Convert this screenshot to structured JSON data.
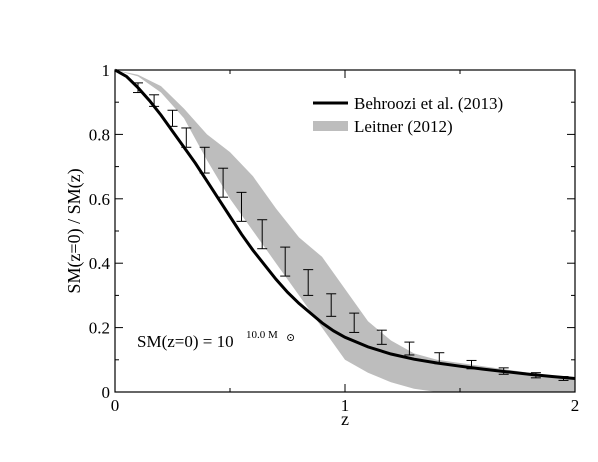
{
  "chart_data": {
    "type": "line",
    "xlabel": "z",
    "ylabel": "SM(z=0) / SM(z)",
    "xlim": [
      0,
      2
    ],
    "ylim": [
      0,
      1
    ],
    "x_ticks": [
      0,
      1,
      2
    ],
    "x_tick_labels": [
      "0",
      "1",
      "2"
    ],
    "y_ticks": [
      0,
      0.2,
      0.4,
      0.6,
      0.8,
      1
    ],
    "y_tick_labels": [
      "0",
      "0.2",
      "0.4",
      "0.6",
      "0.8",
      "1"
    ],
    "grid": false,
    "legend_position": "top-right",
    "annotation": {
      "base": "SM(z=0) = 10",
      "superscript": "10.0 M",
      "symbol": "⊙"
    },
    "series": [
      {
        "name": "Behroozi et al. (2013)",
        "style": "line",
        "color": "#000000",
        "x": [
          0,
          0.05,
          0.1,
          0.15,
          0.2,
          0.25,
          0.3,
          0.35,
          0.4,
          0.45,
          0.5,
          0.55,
          0.6,
          0.65,
          0.7,
          0.75,
          0.8,
          0.85,
          0.9,
          0.95,
          1.0,
          1.1,
          1.2,
          1.3,
          1.4,
          1.5,
          1.6,
          1.7,
          1.8,
          1.9,
          2.0
        ],
        "y": [
          1.0,
          0.98,
          0.945,
          0.905,
          0.86,
          0.81,
          0.76,
          0.71,
          0.655,
          0.6,
          0.545,
          0.49,
          0.44,
          0.395,
          0.35,
          0.31,
          0.275,
          0.245,
          0.215,
          0.19,
          0.17,
          0.14,
          0.118,
          0.102,
          0.09,
          0.08,
          0.071,
          0.063,
          0.055,
          0.048,
          0.042
        ]
      },
      {
        "name": "Leitner (2012)",
        "style": "band",
        "color": "#bdbdbd",
        "x": [
          0,
          0.1,
          0.2,
          0.3,
          0.4,
          0.5,
          0.6,
          0.7,
          0.8,
          0.9,
          1.0,
          1.1,
          1.2,
          1.3,
          1.4,
          1.5,
          1.6,
          1.7,
          1.8,
          1.9,
          2.0
        ],
        "upper": [
          1.0,
          0.985,
          0.95,
          0.88,
          0.8,
          0.745,
          0.67,
          0.57,
          0.48,
          0.42,
          0.32,
          0.22,
          0.16,
          0.12,
          0.1,
          0.09,
          0.08,
          0.07,
          0.06,
          0.05,
          0.04
        ],
        "lower": [
          1.0,
          0.98,
          0.93,
          0.85,
          0.72,
          0.6,
          0.5,
          0.4,
          0.3,
          0.2,
          0.1,
          0.06,
          0.03,
          0.01,
          0.0,
          0.0,
          0.0,
          0.0,
          0.0,
          0.0,
          0.0
        ]
      },
      {
        "name": "",
        "style": "errorbars",
        "color": "#000000",
        "x": [
          0.1,
          0.17,
          0.25,
          0.31,
          0.39,
          0.47,
          0.55,
          0.64,
          0.74,
          0.84,
          0.94,
          1.04,
          1.16,
          1.28,
          1.41,
          1.55,
          1.69,
          1.83,
          1.95
        ],
        "y": [
          0.945,
          0.905,
          0.85,
          0.79,
          0.72,
          0.65,
          0.575,
          0.49,
          0.405,
          0.34,
          0.27,
          0.215,
          0.17,
          0.135,
          0.105,
          0.085,
          0.065,
          0.052,
          0.042
        ],
        "err": [
          0.015,
          0.018,
          0.025,
          0.03,
          0.04,
          0.045,
          0.045,
          0.045,
          0.045,
          0.04,
          0.035,
          0.03,
          0.022,
          0.02,
          0.017,
          0.013,
          0.01,
          0.008,
          0.006
        ]
      }
    ]
  }
}
